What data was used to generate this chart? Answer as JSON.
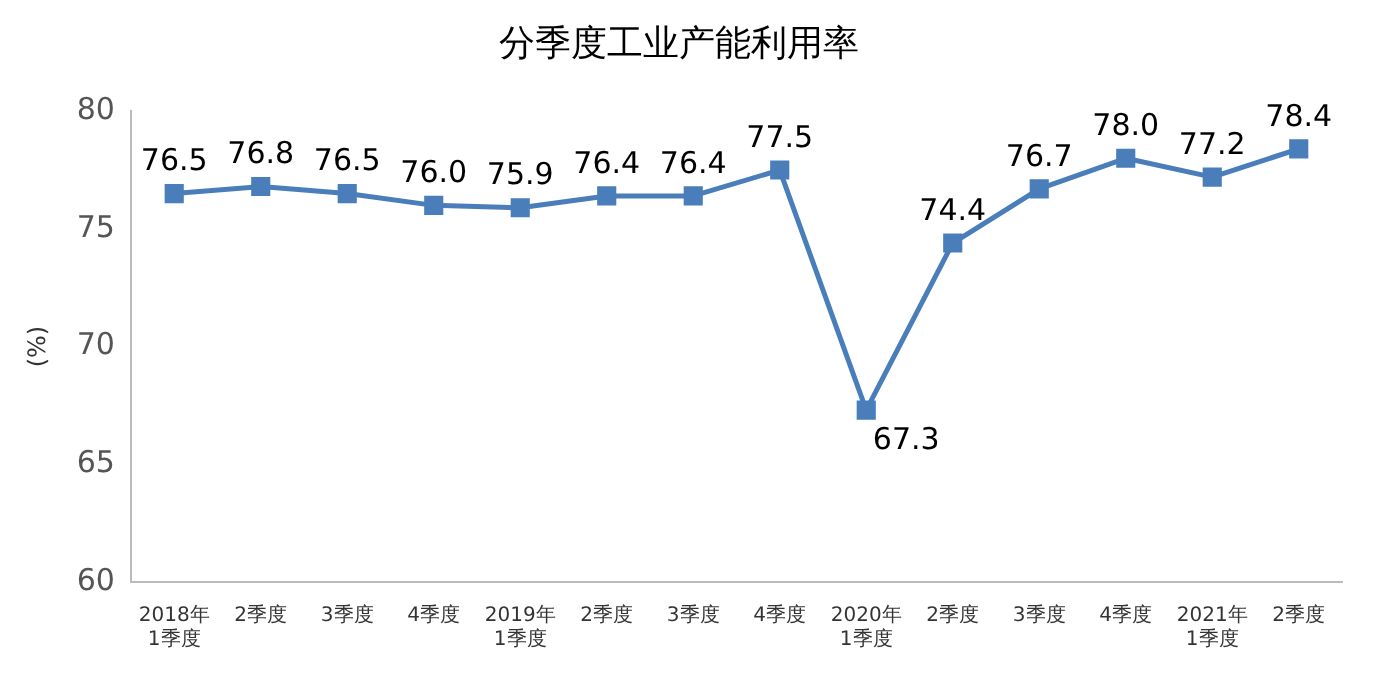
{
  "chart_data": {
    "type": "line",
    "title": "分季度工业产能利用率",
    "ylabel": "(%)",
    "categories": [
      "2018年\n1季度",
      "2季度",
      "3季度",
      "4季度",
      "2019年\n1季度",
      "2季度",
      "3季度",
      "4季度",
      "2020年\n1季度",
      "2季度",
      "3季度",
      "4季度",
      "2021年\n1季度",
      "2季度"
    ],
    "series": [
      {
        "color": "#4a7ebb",
        "values": [
          76.5,
          76.8,
          76.5,
          76.0,
          75.9,
          76.4,
          76.4,
          77.5,
          67.3,
          74.4,
          76.7,
          78.0,
          77.2,
          78.4
        ],
        "value_labels": [
          "76.5",
          "76.8",
          "76.5",
          "76.0",
          "75.9",
          "76.4",
          "76.4",
          "77.5",
          "67.3",
          "74.4",
          "76.7",
          "78.0",
          "77.2",
          "78.4"
        ]
      }
    ],
    "ylim": [
      60,
      80
    ],
    "yticks": [
      60,
      65,
      70,
      75,
      80
    ],
    "grid": false,
    "legend": false,
    "marker": "square",
    "line_style": "solid"
  }
}
